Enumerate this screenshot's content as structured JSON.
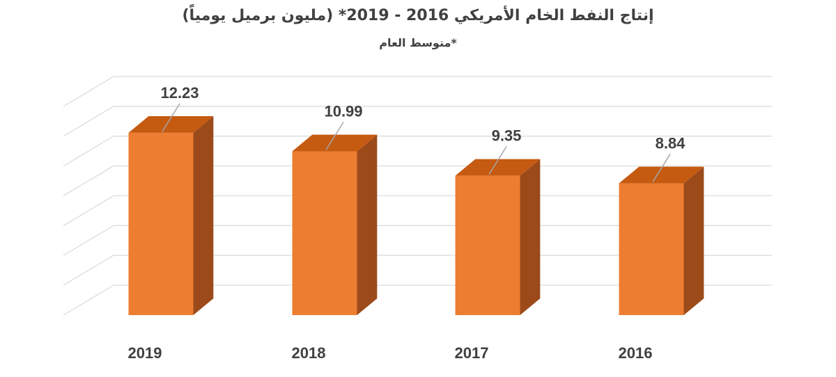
{
  "chart_data": {
    "type": "bar",
    "title": "إنتاج النفط الخام الأمريكي 2016 - 2019* (مليون برميل يومياً)",
    "subtitle": "*متوسط العام",
    "categories": [
      "2019",
      "2018",
      "2017",
      "2016"
    ],
    "values": [
      12.23,
      10.99,
      9.35,
      8.84
    ],
    "value_labels": [
      "12.23",
      "10.99",
      "9.35",
      "8.84"
    ],
    "xlabel": "",
    "ylabel": "",
    "ylim": [
      0,
      14
    ],
    "grid": true,
    "legend": "none",
    "style": "3d-column"
  },
  "colors": {
    "bar_front": "#ed7d31",
    "bar_top": "#c55a11",
    "bar_side": "#9c4a1a",
    "grid": "#d9d9d9",
    "text": "#404040",
    "leader": "#a6a6a6"
  }
}
